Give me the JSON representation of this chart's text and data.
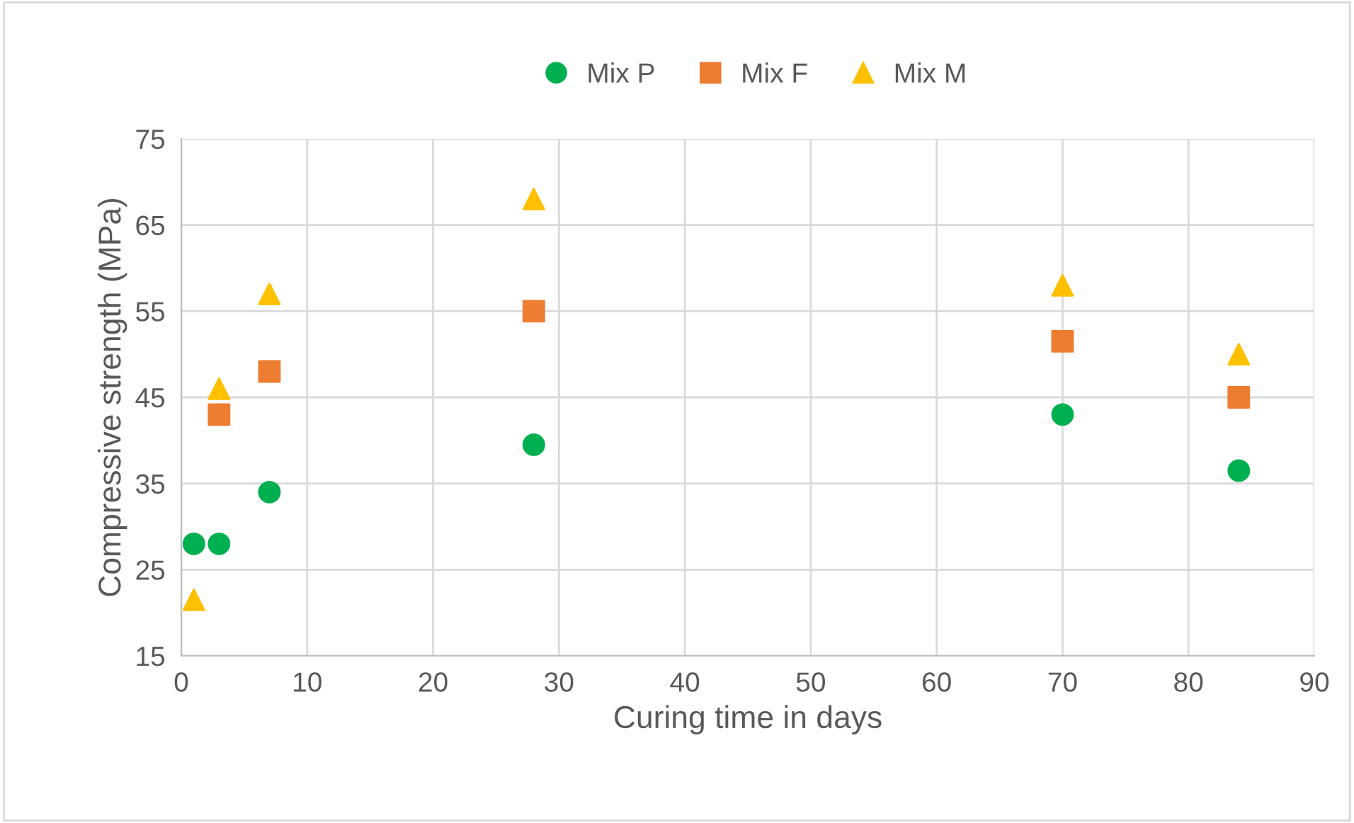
{
  "chart_data": {
    "type": "scatter",
    "xlabel": "Curing time in days",
    "ylabel": "Compressive strength (MPa)",
    "xlim": [
      0,
      90
    ],
    "xticks": [
      0,
      10,
      20,
      30,
      40,
      50,
      60,
      70,
      80,
      90
    ],
    "ylim": [
      15,
      75
    ],
    "yticks": [
      15,
      25,
      35,
      45,
      55,
      65,
      75
    ],
    "grid": true,
    "legend": "top",
    "series": [
      {
        "name": "Mix P",
        "color": "#00b050",
        "marker": "circle",
        "x": [
          1,
          3,
          7,
          28,
          70,
          84
        ],
        "values": [
          28,
          28,
          34,
          39.5,
          43,
          36.5
        ]
      },
      {
        "name": "Mix F",
        "color": "#ed7d31",
        "marker": "square",
        "x": [
          3,
          7,
          28,
          70,
          84
        ],
        "values": [
          43,
          48,
          55,
          51.5,
          45
        ]
      },
      {
        "name": "Mix M",
        "color": "#ffc000",
        "marker": "triangle",
        "x": [
          1,
          3,
          7,
          28,
          70,
          84
        ],
        "values": [
          21.5,
          46,
          57,
          68,
          58,
          50
        ]
      }
    ]
  }
}
